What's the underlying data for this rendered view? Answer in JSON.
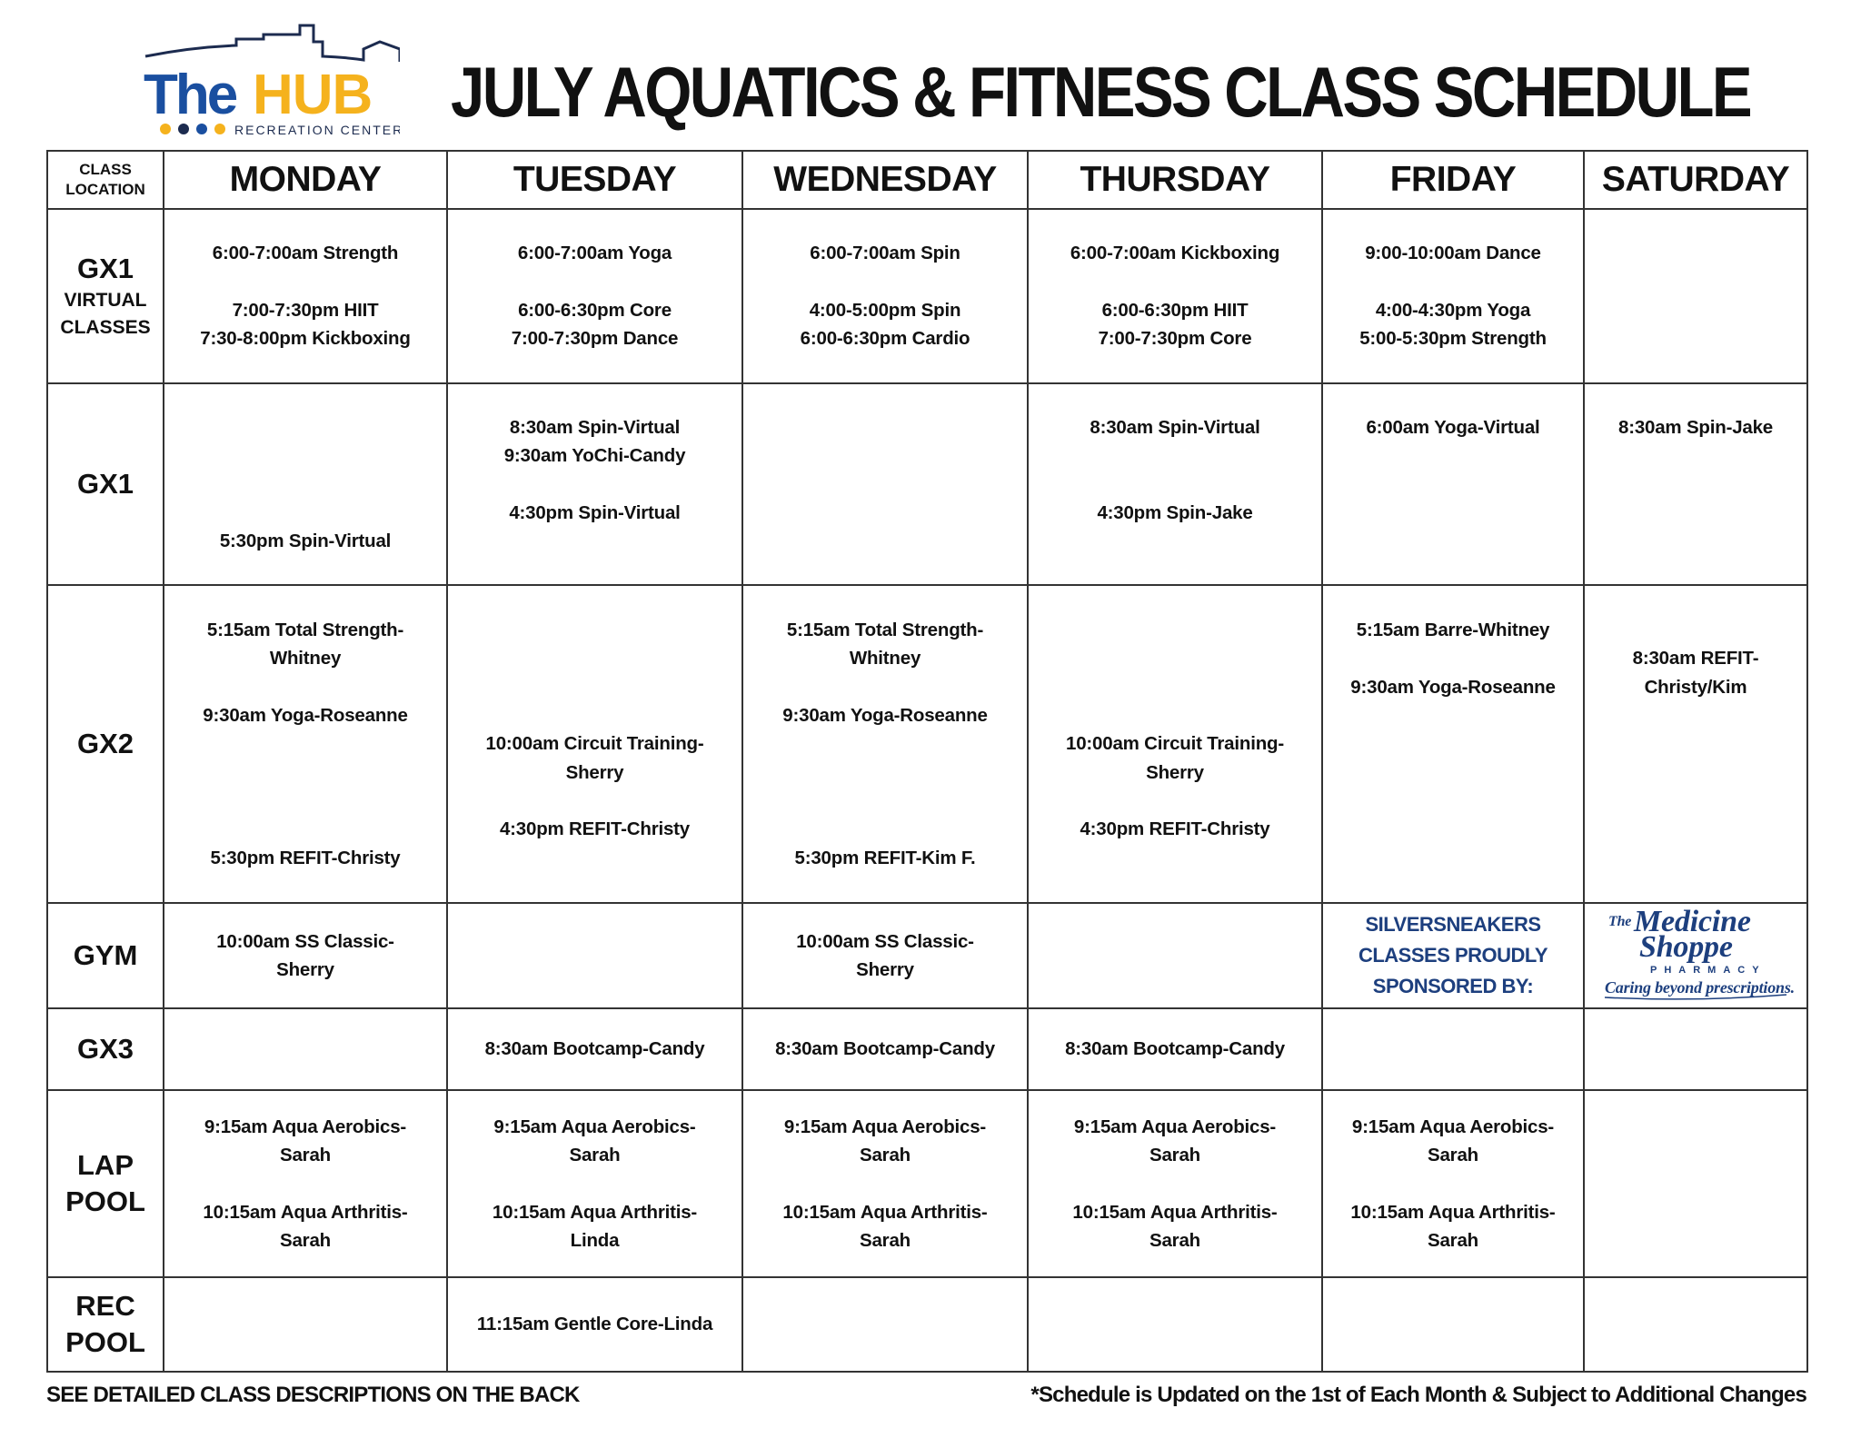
{
  "logo": {
    "the": "The",
    "hub": "HUB",
    "tagline": "RECREATION CENTER",
    "colors": {
      "blue": "#1a4fa0",
      "gold": "#f5b21d",
      "navy": "#1c2b4f"
    }
  },
  "title": "JULY AQUATICS & FITNESS CLASS SCHEDULE",
  "header": {
    "location_line1": "CLASS",
    "location_line2": "LOCATION",
    "days": [
      "MONDAY",
      "TUESDAY",
      "WEDNESDAY",
      "THURSDAY",
      "FRIDAY",
      "SATURDAY"
    ]
  },
  "rows": [
    {
      "label": "GX1",
      "sublabel": "VIRTUAL CLASSES",
      "cells": [
        [
          "6:00-7:00am Strength",
          "",
          "7:00-7:30pm HIIT",
          "7:30-8:00pm Kickboxing"
        ],
        [
          "6:00-7:00am Yoga",
          "",
          "6:00-6:30pm Core",
          "7:00-7:30pm Dance"
        ],
        [
          "6:00-7:00am Spin",
          "",
          "4:00-5:00pm Spin",
          "6:00-6:30pm Cardio"
        ],
        [
          "6:00-7:00am Kickboxing",
          "",
          "6:00-6:30pm HIIT",
          "7:00-7:30pm Core"
        ],
        [
          "9:00-10:00am Dance",
          "",
          "4:00-4:30pm Yoga",
          "5:00-5:30pm Strength"
        ],
        []
      ]
    },
    {
      "label": "GX1",
      "sublabel": "",
      "cells": [
        [
          "",
          "",
          "",
          "",
          "5:30pm Spin-Virtual"
        ],
        [
          "8:30am Spin-Virtual",
          "9:30am YoChi-Candy",
          "",
          "4:30pm Spin-Virtual",
          ""
        ],
        [],
        [
          "8:30am Spin-Virtual",
          "",
          "",
          "4:30pm Spin-Jake",
          ""
        ],
        [
          "6:00am Yoga-Virtual",
          "",
          "",
          "",
          ""
        ],
        [
          "8:30am Spin-Jake",
          "",
          "",
          "",
          ""
        ]
      ]
    },
    {
      "label": "GX2",
      "sublabel": "",
      "cells": [
        [
          "5:15am Total Strength-",
          "Whitney",
          "",
          "9:30am Yoga-Roseanne",
          "",
          "",
          "",
          "",
          "5:30pm REFIT-Christy"
        ],
        [
          "",
          "",
          "",
          "",
          "10:00am Circuit Training-",
          "Sherry",
          "",
          "4:30pm REFIT-Christy",
          ""
        ],
        [
          "5:15am Total Strength-",
          "Whitney",
          "",
          "9:30am Yoga-Roseanne",
          "",
          "",
          "",
          "",
          "5:30pm REFIT-Kim F."
        ],
        [
          "",
          "",
          "",
          "",
          "10:00am Circuit Training-",
          "Sherry",
          "",
          "4:30pm REFIT-Christy",
          ""
        ],
        [
          "5:15am Barre-Whitney",
          "",
          "9:30am Yoga-Roseanne",
          "",
          "",
          "",
          "",
          "",
          ""
        ],
        [
          "",
          "8:30am REFIT-",
          "Christy/Kim",
          "",
          "",
          "",
          "",
          "",
          ""
        ]
      ]
    },
    {
      "label": "GYM",
      "sublabel": "",
      "cells": [
        [
          "10:00am SS Classic-",
          "Sherry"
        ],
        [],
        [
          "10:00am SS Classic-",
          "Sherry"
        ],
        [],
        [],
        []
      ]
    },
    {
      "label": "GX3",
      "sublabel": "",
      "cells": [
        [],
        [
          "8:30am Bootcamp-Candy"
        ],
        [
          "8:30am Bootcamp-Candy"
        ],
        [
          "8:30am Bootcamp-Candy"
        ],
        [],
        []
      ]
    },
    {
      "label": "LAP",
      "sublabel": "POOL",
      "cells": [
        [
          "9:15am Aqua Aerobics-",
          "Sarah",
          "",
          "10:15am Aqua Arthritis-",
          "Sarah"
        ],
        [
          "9:15am Aqua Aerobics-",
          "Sarah",
          "",
          "10:15am Aqua Arthritis-",
          "Linda"
        ],
        [
          "9:15am Aqua Aerobics-",
          "Sarah",
          "",
          "10:15am Aqua Arthritis-",
          "Sarah"
        ],
        [
          "9:15am Aqua Aerobics-",
          "Sarah",
          "",
          "10:15am Aqua Arthritis-",
          "Sarah"
        ],
        [
          "9:15am Aqua Aerobics-",
          "Sarah",
          "",
          "10:15am Aqua Arthritis-",
          "Sarah"
        ],
        []
      ]
    },
    {
      "label": "REC",
      "sublabel": "POOL",
      "cells": [
        [],
        [
          "11:15am Gentle Core-Linda"
        ],
        [],
        [],
        [],
        []
      ]
    }
  ],
  "sponsor": {
    "text": [
      "SILVERSNEAKERS",
      "CLASSES PROUDLY",
      "SPONSORED BY:"
    ],
    "logo_the": "The",
    "logo_line1": "Medicine",
    "logo_line2": "Shoppe",
    "logo_pharmacy": "PHARMACY",
    "logo_tagline": "Caring beyond prescriptions.",
    "color": "#1d3f7e"
  },
  "footer": {
    "left": "SEE DETAILED CLASS DESCRIPTIONS ON THE BACK",
    "right": "*Schedule is Updated on the 1st of Each Month & Subject to Additional Changes"
  }
}
